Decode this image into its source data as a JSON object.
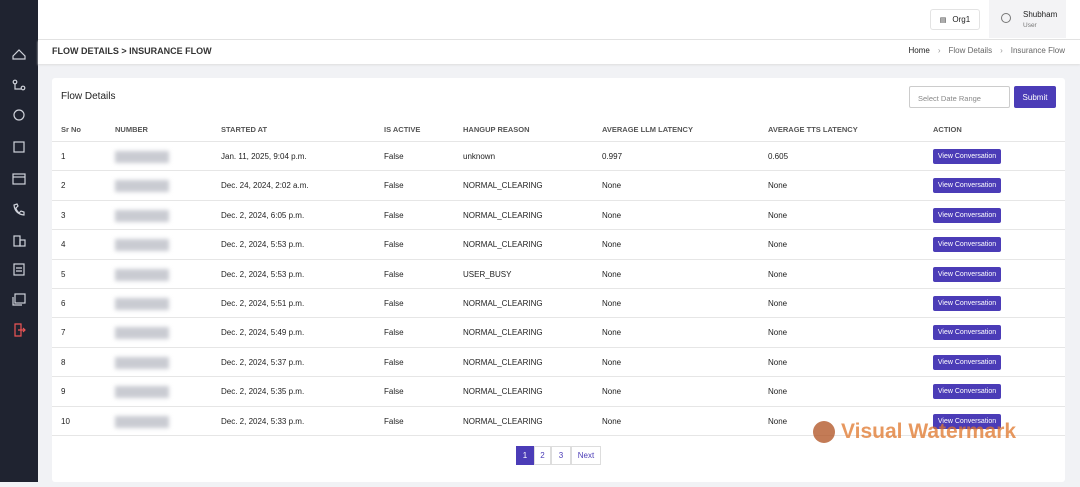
{
  "header": {
    "org": "Org1",
    "user_name": "Shubham",
    "user_role": "User"
  },
  "breadcrumb": {
    "title": "FLOW DETAILS > INSURANCE FLOW",
    "items": [
      "Home",
      "Flow Details",
      "Insurance Flow"
    ]
  },
  "card": {
    "title": "Flow Details",
    "date_placeholder": "Select Date Range",
    "submit": "Submit"
  },
  "table": {
    "columns": [
      "Sr No",
      "NUMBER",
      "STARTED AT",
      "IS ACTIVE",
      "HANGUP REASON",
      "AVERAGE LLM LATENCY",
      "AVERAGE TTS LATENCY",
      "ACTION"
    ],
    "action_button": "View Conversation",
    "rows": [
      [
        1,
        "Jan. 11, 2025, 9:04 p.m.",
        "False",
        "unknown",
        0.997,
        0.605
      ],
      [
        2,
        "Dec. 24, 2024, 2:02 a.m.",
        "False",
        "NORMAL_CLEARING",
        "None",
        "None"
      ],
      [
        3,
        "Dec. 2, 2024, 6:05 p.m.",
        "False",
        "NORMAL_CLEARING",
        "None",
        "None"
      ],
      [
        4,
        "Dec. 2, 2024, 5:53 p.m.",
        "False",
        "NORMAL_CLEARING",
        "None",
        "None"
      ],
      [
        5,
        "Dec. 2, 2024, 5:53 p.m.",
        "False",
        "USER_BUSY",
        "None",
        "None"
      ],
      [
        6,
        "Dec. 2, 2024, 5:51 p.m.",
        "False",
        "NORMAL_CLEARING",
        "None",
        "None"
      ],
      [
        7,
        "Dec. 2, 2024, 5:49 p.m.",
        "False",
        "NORMAL_CLEARING",
        "None",
        "None"
      ],
      [
        8,
        "Dec. 2, 2024, 5:37 p.m.",
        "False",
        "NORMAL_CLEARING",
        "None",
        "None"
      ],
      [
        9,
        "Dec. 2, 2024, 5:35 p.m.",
        "False",
        "NORMAL_CLEARING",
        "None",
        "None"
      ],
      [
        10,
        "Dec. 2, 2024, 5:33 p.m.",
        "False",
        "NORMAL_CLEARING",
        "None",
        "None"
      ]
    ]
  },
  "pagination": [
    "1",
    "2",
    "3",
    "Next"
  ],
  "watermark": "Visual Watermark"
}
